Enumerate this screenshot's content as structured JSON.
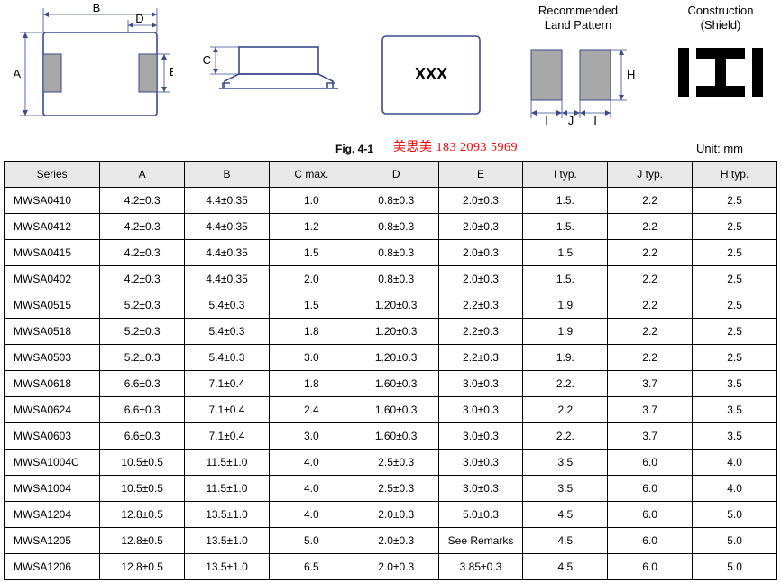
{
  "diagrams": {
    "landPattern": {
      "title": "Recommended\nLand Pattern",
      "labels": {
        "I": "I",
        "J": "J",
        "H": "H"
      }
    },
    "construction": {
      "title": "Construction\n(Shield)"
    },
    "topView": {
      "A": "A",
      "B": "B",
      "D": "D",
      "E": "E"
    },
    "sideView": {
      "C": "C"
    },
    "marking": {
      "text": "XXX"
    }
  },
  "figLabel": "Fig. 4-1",
  "watermark": "美思美  183 2093 5969",
  "unitLabel": "Unit: mm",
  "table": {
    "columns": [
      "Series",
      "A",
      "B",
      "C max.",
      "D",
      "E",
      "I typ.",
      "J typ.",
      "H typ."
    ],
    "rows": [
      [
        "MWSA0410",
        "4.2±0.3",
        "4.4±0.35",
        "1.0",
        "0.8±0.3",
        "2.0±0.3",
        "1.5.",
        "2.2",
        "2.5"
      ],
      [
        "MWSA0412",
        "4.2±0.3",
        "4.4±0.35",
        "1.2",
        "0.8±0.3",
        "2.0±0.3",
        "1.5.",
        "2.2",
        "2.5"
      ],
      [
        "MWSA0415",
        "4.2±0.3",
        "4.4±0.35",
        "1.5",
        "0.8±0.3",
        "2.0±0.3",
        "1.5",
        "2.2",
        "2.5"
      ],
      [
        "MWSA0402",
        "4.2±0.3",
        "4.4±0.35",
        "2.0",
        "0.8±0.3",
        "2.0±0.3",
        "1.5.",
        "2.2",
        "2.5"
      ],
      [
        "MWSA0515",
        "5.2±0.3",
        "5.4±0.3",
        "1.5",
        "1.20±0.3",
        "2.2±0.3",
        "1.9",
        "2.2",
        "2.5"
      ],
      [
        "MWSA0518",
        "5.2±0.3",
        "5.4±0.3",
        "1.8",
        "1.20±0.3",
        "2.2±0.3",
        "1.9",
        "2.2",
        "2.5"
      ],
      [
        "MWSA0503",
        "5.2±0.3",
        "5.4±0.3",
        "3.0",
        "1.20±0.3",
        "2.2±0.3",
        "1.9.",
        "2.2",
        "2.5"
      ],
      [
        "MWSA0618",
        "6.6±0.3",
        "7.1±0.4",
        "1.8",
        "1.60±0.3",
        "3.0±0.3",
        "2.2.",
        "3.7",
        "3.5"
      ],
      [
        "MWSA0624",
        "6.6±0.3",
        "7.1±0.4",
        "2.4",
        "1.60±0.3",
        "3.0±0.3",
        "2.2",
        "3.7",
        "3.5"
      ],
      [
        "MWSA0603",
        "6.6±0.3",
        "7.1±0.4",
        "3.0",
        "1.60±0.3",
        "3.0±0.3",
        "2.2.",
        "3.7",
        "3.5"
      ],
      [
        "MWSA1004C",
        "10.5±0.5",
        "11.5±1.0",
        "4.0",
        "2.5±0.3",
        "3.0±0.3",
        "3.5",
        "6.0",
        "4.0"
      ],
      [
        "MWSA1004",
        "10.5±0.5",
        "11.5±1.0",
        "4.0",
        "2.5±0.3",
        "3.0±0.3",
        "3.5",
        "6.0",
        "4.0"
      ],
      [
        "MWSA1204",
        "12.8±0.5",
        "13.5±1.0",
        "4.0",
        "2.0±0.3",
        "5.0±0.3",
        "4.5",
        "6.0",
        "5.0"
      ],
      [
        "MWSA1205",
        "12.8±0.5",
        "13.5±1.0",
        "5.0",
        "2.0±0.3",
        "See Remarks",
        "4.5",
        "6.0",
        "5.0"
      ],
      [
        "MWSA1206",
        "12.8±0.5",
        "13.5±1.0",
        "6.5",
        "2.0±0.3",
        "3.85±0.3",
        "4.5",
        "6.0",
        "5.0"
      ]
    ],
    "headerBg": "#e8e8e8",
    "borderColor": "#000000",
    "colWidths": [
      "12.4%",
      "10.95%",
      "10.95%",
      "10.95%",
      "10.95%",
      "10.95%",
      "10.95%",
      "10.95%",
      "10.95%"
    ]
  },
  "colors": {
    "line": "#3a4a8a",
    "pad": "#a8a8a8",
    "watermark": "#ff0000"
  }
}
